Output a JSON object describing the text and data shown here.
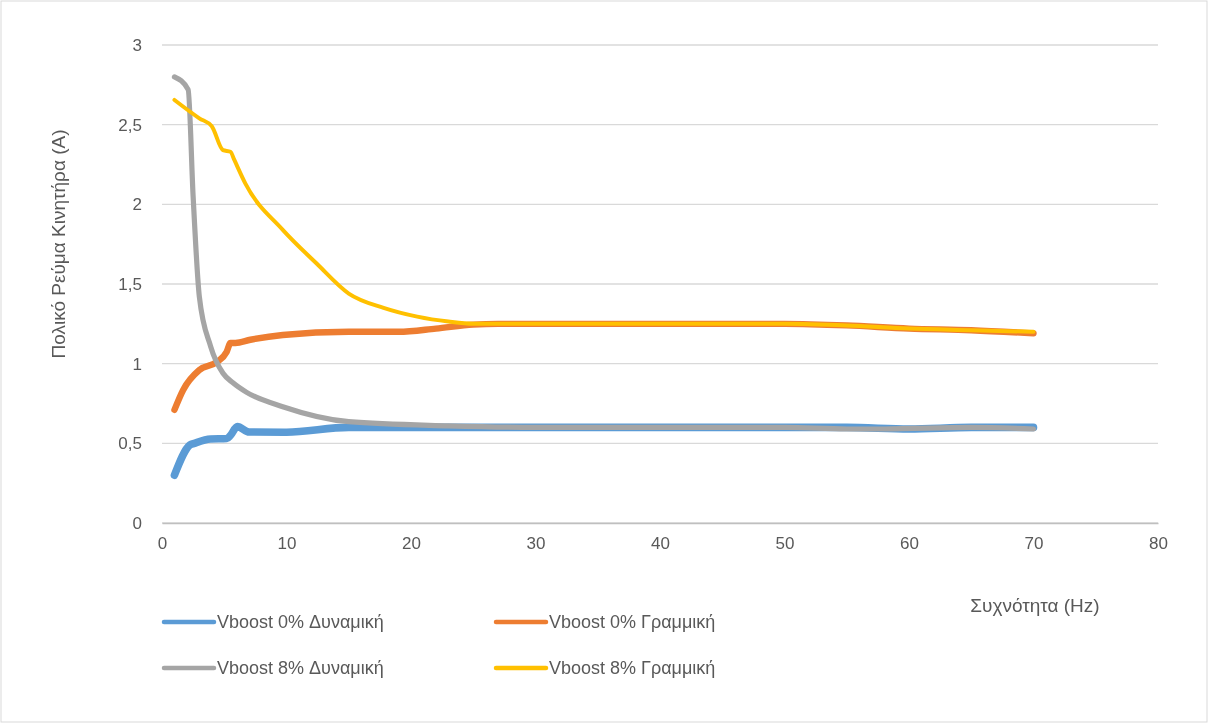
{
  "chart_data": {
    "type": "line",
    "xlabel": "Συχνότητα (Hz)",
    "ylabel": "Πολικό Ρεύμα Κινητήρα (A)",
    "xlim": [
      0,
      80
    ],
    "xticks": [
      0,
      10,
      20,
      30,
      40,
      50,
      60,
      70,
      80
    ],
    "ylim": [
      0,
      3
    ],
    "yticks": [
      0,
      {
        "value": 0.5,
        "label": "0,5"
      },
      1,
      {
        "value": 1.5,
        "label": "1,5"
      },
      2,
      {
        "value": 2.5,
        "label": "2,5"
      },
      3
    ],
    "grid": "y",
    "legend": "bottom",
    "marker": "none",
    "line_style": "solid",
    "series": [
      {
        "name": "Vboost 0% Δυναμική",
        "color": "#5b9bd5",
        "x": [
          1,
          2.25,
          2.6,
          3.9,
          5.2,
          5.5,
          6.05,
          7,
          10,
          15,
          20,
          30,
          40,
          50,
          55,
          60,
          65,
          70
        ],
        "values": [
          0.3,
          0.49,
          0.5,
          0.527,
          0.53,
          0.55,
          0.605,
          0.571,
          0.57,
          0.6,
          0.6,
          0.6,
          0.6,
          0.6,
          0.6,
          0.59,
          0.6,
          0.6
        ]
      },
      {
        "name": "Vboost 0% Γραμμική",
        "color": "#ed7d31",
        "x": [
          1,
          1.7,
          3,
          4.4,
          5.2,
          5.5,
          5.9,
          7.1,
          9.7,
          15,
          19,
          22,
          25,
          27,
          30,
          40,
          50,
          55,
          60,
          65,
          70
        ],
        "values": [
          0.71,
          0.835,
          0.96,
          1.01,
          1.075,
          1.13,
          1.13,
          1.15,
          1.18,
          1.2,
          1.2,
          1.22,
          1.245,
          1.25,
          1.25,
          1.25,
          1.25,
          1.24,
          1.22,
          1.21,
          1.19
        ]
      },
      {
        "name": "Vboost 8% Δυναμική",
        "color": "#a5a5a5",
        "x": [
          1,
          2.1,
          2.5,
          3,
          3.9,
          4.9,
          5.7,
          6.8,
          9.7,
          15,
          23,
          30,
          40,
          50,
          55,
          58,
          65,
          70
        ],
        "values": [
          2.8,
          2.72,
          2.05,
          1.42,
          1.11,
          0.94,
          0.88,
          0.82,
          0.73,
          0.636,
          0.61,
          0.6,
          0.6,
          0.6,
          0.59,
          0.59,
          0.6,
          0.59
        ]
      },
      {
        "name": "Vboost 8% Γραμμική",
        "color": "#ffc000",
        "x": [
          1,
          3,
          4,
          4.9,
          5.5,
          5.8,
          6.7,
          9.7,
          12.4,
          15,
          17.8,
          20.5,
          23,
          25,
          30,
          40,
          50,
          55,
          60,
          65,
          70
        ],
        "values": [
          2.655,
          2.54,
          2.49,
          2.34,
          2.33,
          2.28,
          2.13,
          1.84,
          1.63,
          1.44,
          1.35,
          1.295,
          1.264,
          1.25,
          1.25,
          1.25,
          1.25,
          1.24,
          1.22,
          1.21,
          1.2
        ]
      }
    ]
  }
}
